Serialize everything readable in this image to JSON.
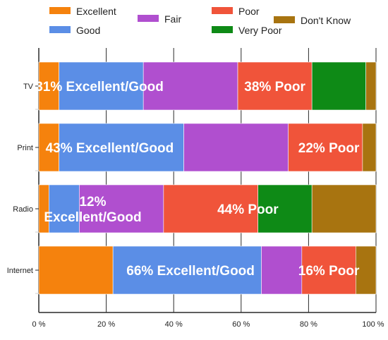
{
  "chart_data": {
    "type": "bar",
    "orientation": "horizontal",
    "stacked": true,
    "categories": [
      "TV",
      "Print",
      "Radio",
      "Internet"
    ],
    "series": [
      {
        "name": "Excellent",
        "color": "#f5820d",
        "values": [
          6,
          6,
          3,
          22
        ]
      },
      {
        "name": "Good",
        "color": "#5b8ee6",
        "values": [
          25,
          37,
          9,
          44
        ]
      },
      {
        "name": "Fair",
        "color": "#b04fcf",
        "values": [
          28,
          31,
          25,
          12
        ]
      },
      {
        "name": "Poor",
        "color": "#f0543a",
        "values": [
          22,
          22,
          28,
          16
        ]
      },
      {
        "name": "Very Poor",
        "color": "#0e8a16",
        "values": [
          16,
          0,
          16,
          0
        ]
      },
      {
        "name": "Don't Know",
        "color": "#a87410",
        "values": [
          3,
          4,
          19,
          6
        ]
      }
    ],
    "xlim": [
      0,
      100
    ],
    "x_ticks": [
      "0 %",
      "20 %",
      "40 %",
      "60 %",
      "80 %",
      "100 %"
    ],
    "grid": true,
    "legend_position": "top",
    "annotations": [
      {
        "category": "TV",
        "lines": [
          "31% Excellent/Good"
        ],
        "x": 18
      },
      {
        "category": "TV",
        "lines": [
          "38% Poor"
        ],
        "x": 70
      },
      {
        "category": "Print",
        "lines": [
          "43% Excellent/Good"
        ],
        "x": 21
      },
      {
        "category": "Print",
        "lines": [
          "22% Poor"
        ],
        "x": 86
      },
      {
        "category": "Radio",
        "lines": [
          "12%",
          "Excellent/Good"
        ],
        "x": 16
      },
      {
        "category": "Radio",
        "lines": [
          "44% Poor"
        ],
        "x": 62
      },
      {
        "category": "Internet",
        "lines": [
          "66% Excellent/Good"
        ],
        "x": 45
      },
      {
        "category": "Internet",
        "lines": [
          "16% Poor"
        ],
        "x": 86
      }
    ]
  }
}
